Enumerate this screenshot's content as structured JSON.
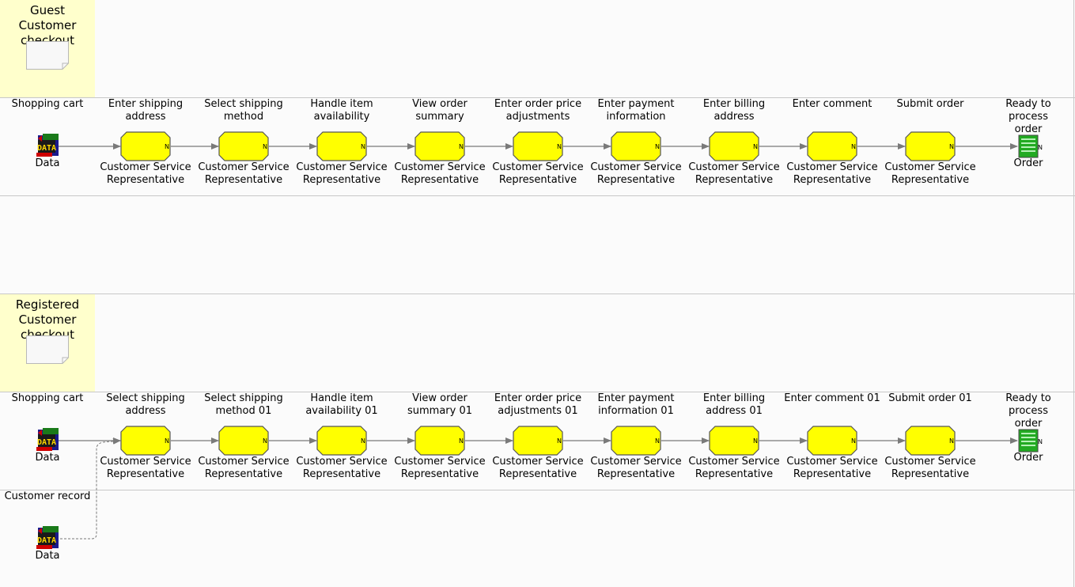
{
  "colors": {
    "task_fill": "#ffff00",
    "lane_header": "#ffffcc",
    "order_icon": "#22aa22",
    "line": "#7a7a7a"
  },
  "processes": [
    {
      "title": "Guest\nCustomer\ncheckout",
      "input_lane_label": "Shopping cart",
      "input_caption": "Data",
      "output_label": "Ready to process\norder",
      "output_caption": "Order",
      "tasks": [
        {
          "title": "Enter shipping\naddress",
          "performer": "Customer Service\nRepresentative"
        },
        {
          "title": "Select shipping\nmethod",
          "performer": "Customer Service\nRepresentative"
        },
        {
          "title": "Handle item\navailability",
          "performer": "Customer Service\nRepresentative"
        },
        {
          "title": "View order\nsummary",
          "performer": "Customer Service\nRepresentative"
        },
        {
          "title": "Enter order price\nadjustments",
          "performer": "Customer Service\nRepresentative"
        },
        {
          "title": "Enter payment\ninformation",
          "performer": "Customer Service\nRepresentative"
        },
        {
          "title": "Enter billing\naddress",
          "performer": "Customer Service\nRepresentative"
        },
        {
          "title": "Enter comment",
          "performer": "Customer Service\nRepresentative"
        },
        {
          "title": "Submit order",
          "performer": "Customer Service\nRepresentative"
        }
      ]
    },
    {
      "title": "Registered\nCustomer\ncheckout",
      "input_lane_label": "Shopping cart",
      "input_caption": "Data",
      "output_label": "Ready to process\norder",
      "output_caption": "Order",
      "extra_lane_label": "Customer record",
      "extra_caption": "Data",
      "tasks": [
        {
          "title": "Select shipping\naddress",
          "performer": "Customer Service\nRepresentative"
        },
        {
          "title": "Select shipping\nmethod 01",
          "performer": "Customer Service\nRepresentative"
        },
        {
          "title": "Handle item\navailability 01",
          "performer": "Customer Service\nRepresentative"
        },
        {
          "title": "View order\nsummary 01",
          "performer": "Customer Service\nRepresentative"
        },
        {
          "title": "Enter order price\nadjustments 01",
          "performer": "Customer Service\nRepresentative"
        },
        {
          "title": "Enter payment\ninformation 01",
          "performer": "Customer Service\nRepresentative"
        },
        {
          "title": "Enter billing\naddress 01",
          "performer": "Customer Service\nRepresentative"
        },
        {
          "title": "Enter comment 01",
          "performer": "Customer Service\nRepresentative"
        },
        {
          "title": "Submit order 01",
          "performer": "Customer Service\nRepresentative"
        }
      ]
    }
  ],
  "icons": {
    "data": "data-store-icon",
    "order": "order-document-icon",
    "process_doc": "document-icon",
    "task_marker": "N"
  }
}
